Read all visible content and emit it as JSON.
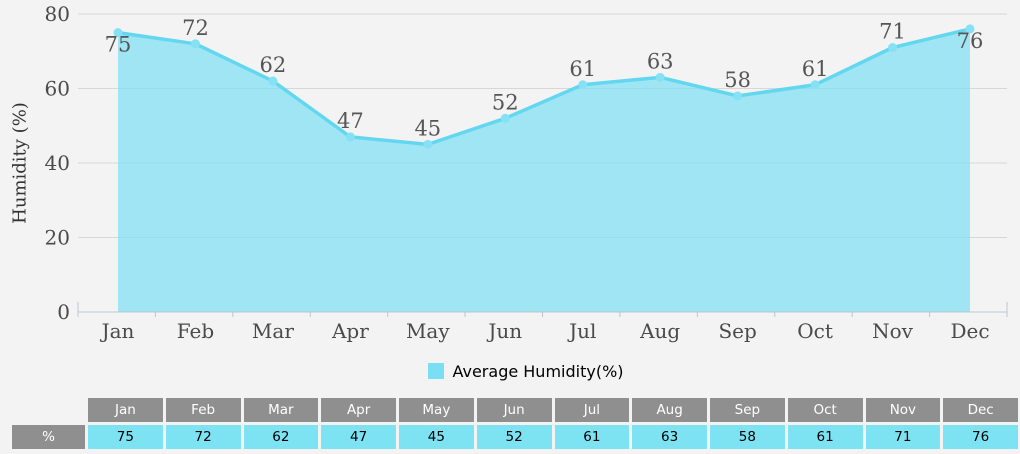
{
  "chart_data": {
    "type": "area",
    "title": "",
    "categories": [
      "Jan",
      "Feb",
      "Mar",
      "Apr",
      "May",
      "Jun",
      "Jul",
      "Aug",
      "Sep",
      "Oct",
      "Nov",
      "Dec"
    ],
    "series": [
      {
        "name": "Average Humidity(%)",
        "values": [
          75,
          72,
          62,
          47,
          45,
          52,
          61,
          63,
          58,
          61,
          71,
          76
        ]
      }
    ],
    "xlabel": "",
    "ylabel": "Humidity (%)",
    "ylim": [
      0,
      80
    ],
    "yticks": [
      0,
      20,
      40,
      60,
      80
    ],
    "grid": true,
    "data_labels": true,
    "legend_position": "bottom-center"
  },
  "legend": {
    "label": "Average Humidity(%)",
    "swatch_color": "#79DFF2"
  },
  "table": {
    "row_label": "%"
  },
  "colors": {
    "background": "#f3f3f3",
    "gridline": "#d7d7d7",
    "axis": "#b9c8d0",
    "area_fill": "#7FDFF2",
    "line": "#63D7EF",
    "marker": "#85E1F3",
    "data_label": "#555555",
    "tick_label": "#4a4a4a",
    "table_header_bg": "#8F8F8F",
    "table_cell_bg": "#7DE2F2"
  }
}
